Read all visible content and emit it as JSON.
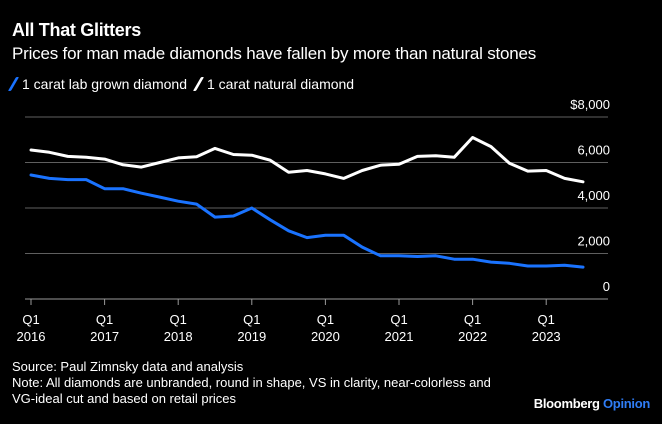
{
  "header": {
    "title": "All That Glitters",
    "subtitle": "Prices for man made diamonds have fallen by more than natural stones"
  },
  "footer": {
    "source": "Source: Paul Zimnsky data and analysis",
    "note_line1": "Note: All diamonds are unbranded, round in shape, VS in clarity, near-colorless and",
    "note_line2": "VG-ideal cut and based on retail prices",
    "brand": "Bloomberg",
    "brand_suffix": "Opinion"
  },
  "colors": {
    "lab": "#1a73ff",
    "natural": "#ffffff",
    "background": "#000000",
    "grid": "#6b6b6b",
    "brand_accent": "#2f7df6"
  },
  "chart_data": {
    "type": "line",
    "title": "All That Glitters",
    "subtitle": "Prices for man made diamonds have fallen by more than natural stones",
    "xlabel": "",
    "ylabel": "",
    "ylim": [
      0,
      8000
    ],
    "y_ticks": [
      0,
      2000,
      4000,
      6000,
      8000
    ],
    "y_tick_labels": [
      "0",
      "2,000",
      "4,000",
      "6,000",
      "$8,000"
    ],
    "x_tick_labels": [
      {
        "q": "Q1",
        "year": "2016"
      },
      {
        "q": "Q1",
        "year": "2017"
      },
      {
        "q": "Q1",
        "year": "2018"
      },
      {
        "q": "Q1",
        "year": "2019"
      },
      {
        "q": "Q1",
        "year": "2020"
      },
      {
        "q": "Q1",
        "year": "2021"
      },
      {
        "q": "Q1",
        "year": "2022"
      },
      {
        "q": "Q1",
        "year": "2023"
      }
    ],
    "grid": true,
    "legend_position": "top-left",
    "x": [
      "Q1 2016",
      "Q2 2016",
      "Q3 2016",
      "Q4 2016",
      "Q1 2017",
      "Q2 2017",
      "Q3 2017",
      "Q4 2017",
      "Q1 2018",
      "Q2 2018",
      "Q3 2018",
      "Q4 2018",
      "Q1 2019",
      "Q2 2019",
      "Q3 2019",
      "Q4 2019",
      "Q1 2020",
      "Q2 2020",
      "Q3 2020",
      "Q4 2020",
      "Q1 2021",
      "Q2 2021",
      "Q3 2021",
      "Q4 2021",
      "Q1 2022",
      "Q2 2022",
      "Q3 2022",
      "Q4 2022",
      "Q1 2023",
      "Q2 2023",
      "Q3 2023"
    ],
    "series": [
      {
        "name": "1 carat lab grown diamond",
        "color": "#1a73ff",
        "values": [
          5450,
          5300,
          5250,
          5250,
          4850,
          4850,
          4650,
          4480,
          4300,
          4170,
          3600,
          3650,
          4000,
          3480,
          3000,
          2700,
          2800,
          2800,
          2280,
          1900,
          1900,
          1870,
          1900,
          1750,
          1750,
          1620,
          1570,
          1450,
          1450,
          1480,
          1400
        ]
      },
      {
        "name": "1 carat natural diamond",
        "color": "#ffffff",
        "values": [
          6550,
          6450,
          6270,
          6230,
          6150,
          5900,
          5800,
          6000,
          6200,
          6250,
          6620,
          6350,
          6320,
          6100,
          5570,
          5650,
          5500,
          5300,
          5650,
          5880,
          5920,
          6270,
          6300,
          6230,
          7100,
          6700,
          5970,
          5620,
          5650,
          5300,
          5150
        ]
      }
    ]
  }
}
